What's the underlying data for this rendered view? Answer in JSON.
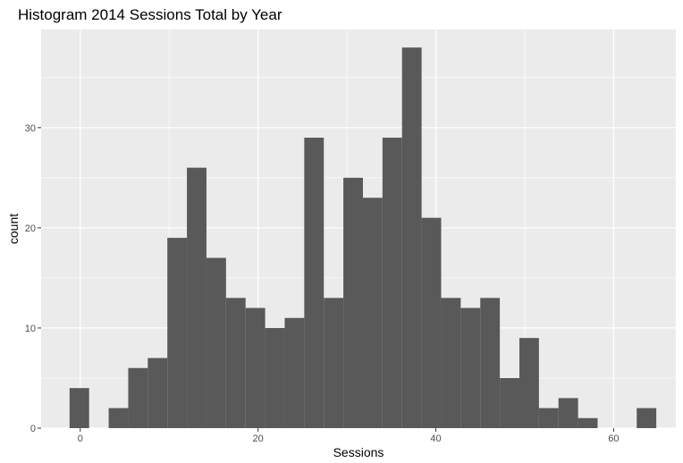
{
  "chart_data": {
    "type": "bar",
    "title": "Histogram 2014 Sessions Total by Year",
    "xlabel": "Sessions",
    "ylabel": "count",
    "bin_width": 2.2,
    "bins": [
      {
        "x": -0.1,
        "count": 4
      },
      {
        "x": 2.1,
        "count": 0
      },
      {
        "x": 4.3,
        "count": 2
      },
      {
        "x": 6.5,
        "count": 6
      },
      {
        "x": 8.7,
        "count": 7
      },
      {
        "x": 10.9,
        "count": 19
      },
      {
        "x": 13.1,
        "count": 26
      },
      {
        "x": 15.3,
        "count": 17
      },
      {
        "x": 17.5,
        "count": 13
      },
      {
        "x": 19.7,
        "count": 12
      },
      {
        "x": 21.9,
        "count": 10
      },
      {
        "x": 24.1,
        "count": 11
      },
      {
        "x": 26.3,
        "count": 29
      },
      {
        "x": 28.5,
        "count": 13
      },
      {
        "x": 30.7,
        "count": 25
      },
      {
        "x": 32.9,
        "count": 23
      },
      {
        "x": 35.1,
        "count": 29
      },
      {
        "x": 37.3,
        "count": 38
      },
      {
        "x": 39.5,
        "count": 21
      },
      {
        "x": 41.7,
        "count": 13
      },
      {
        "x": 43.9,
        "count": 12
      },
      {
        "x": 46.1,
        "count": 13
      },
      {
        "x": 48.3,
        "count": 5
      },
      {
        "x": 50.5,
        "count": 9
      },
      {
        "x": 52.7,
        "count": 2
      },
      {
        "x": 54.9,
        "count": 3
      },
      {
        "x": 57.1,
        "count": 1
      },
      {
        "x": 59.3,
        "count": 0
      },
      {
        "x": 61.5,
        "count": 0
      },
      {
        "x": 63.7,
        "count": 2
      }
    ],
    "xlim": [
      -4.4,
      67.0
    ],
    "ylim": [
      0,
      39.8
    ],
    "x_ticks": [
      0,
      20,
      40,
      60
    ],
    "y_ticks": [
      0,
      10,
      20,
      30
    ],
    "grid": true,
    "colors": {
      "panel": "#ebebeb",
      "grid_major": "#ffffff",
      "bar": "#595959",
      "tick": "#333333"
    }
  }
}
